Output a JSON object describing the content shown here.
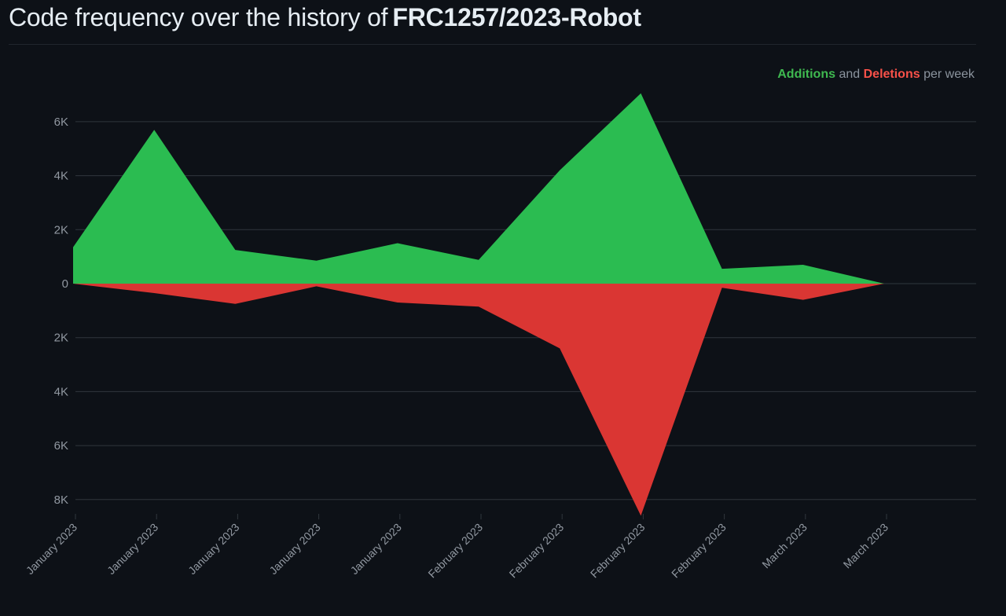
{
  "header": {
    "title_prefix": "Code frequency over the history of",
    "repo_name": "FRC1257/2023-Robot"
  },
  "legend": {
    "additions_label": "Additions",
    "and_label": "and",
    "deletions_label": "Deletions",
    "suffix_label": "per week"
  },
  "colors": {
    "background": "#0d1117",
    "additions": "#2bbc51",
    "deletions": "#da3633",
    "gridline": "#30363d",
    "axis_text": "#9198a1"
  },
  "chart_data": {
    "type": "area",
    "title": "Code frequency over the history of FRC1257/2023-Robot",
    "xlabel": "",
    "ylabel": "",
    "x": [
      "January 2023",
      "January 2023",
      "January 2023",
      "January 2023",
      "January 2023",
      "February 2023",
      "February 2023",
      "February 2023",
      "February 2023",
      "March 2023",
      "March 2023"
    ],
    "series": [
      {
        "name": "Additions",
        "color": "#2bbc51",
        "values": [
          1350,
          5700,
          1250,
          850,
          1500,
          880,
          4200,
          7050,
          550,
          700,
          0
        ]
      },
      {
        "name": "Deletions",
        "color": "#da3633",
        "values": [
          0,
          -350,
          -750,
          -100,
          -700,
          -850,
          -2400,
          -8600,
          -150,
          -600,
          0
        ]
      }
    ],
    "ylim": [
      -8600,
      7050
    ],
    "y_ticks": [
      6000,
      4000,
      2000,
      0,
      -2000,
      -4000,
      -6000,
      -8000
    ],
    "y_tick_labels": [
      "6K",
      "4K",
      "2K",
      "0",
      "2K",
      "4K",
      "6K",
      "8K"
    ],
    "grid": true,
    "legend_position": "top-right"
  }
}
